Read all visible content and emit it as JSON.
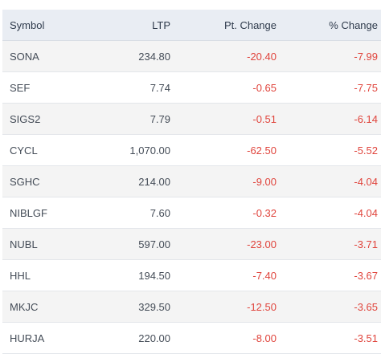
{
  "colors": {
    "header_bg": "#e9edf3",
    "row_alt_bg": "#f4f4f4",
    "negative": "#e0443c"
  },
  "table": {
    "headers": {
      "symbol": "Symbol",
      "ltp": "LTP",
      "pt_change": "Pt. Change",
      "pct_change": "% Change"
    },
    "rows": [
      {
        "symbol": "SONA",
        "ltp": "234.80",
        "pt_change": "-20.40",
        "pct_change": "-7.99"
      },
      {
        "symbol": "SEF",
        "ltp": "7.74",
        "pt_change": "-0.65",
        "pct_change": "-7.75"
      },
      {
        "symbol": "SIGS2",
        "ltp": "7.79",
        "pt_change": "-0.51",
        "pct_change": "-6.14"
      },
      {
        "symbol": "CYCL",
        "ltp": "1,070.00",
        "pt_change": "-62.50",
        "pct_change": "-5.52"
      },
      {
        "symbol": "SGHC",
        "ltp": "214.00",
        "pt_change": "-9.00",
        "pct_change": "-4.04"
      },
      {
        "symbol": "NIBLGF",
        "ltp": "7.60",
        "pt_change": "-0.32",
        "pct_change": "-4.04"
      },
      {
        "symbol": "NUBL",
        "ltp": "597.00",
        "pt_change": "-23.00",
        "pct_change": "-3.71"
      },
      {
        "symbol": "HHL",
        "ltp": "194.50",
        "pt_change": "-7.40",
        "pct_change": "-3.67"
      },
      {
        "symbol": "MKJC",
        "ltp": "329.50",
        "pt_change": "-12.50",
        "pct_change": "-3.65"
      },
      {
        "symbol": "HURJA",
        "ltp": "220.00",
        "pt_change": "-8.00",
        "pct_change": "-3.51"
      }
    ]
  }
}
